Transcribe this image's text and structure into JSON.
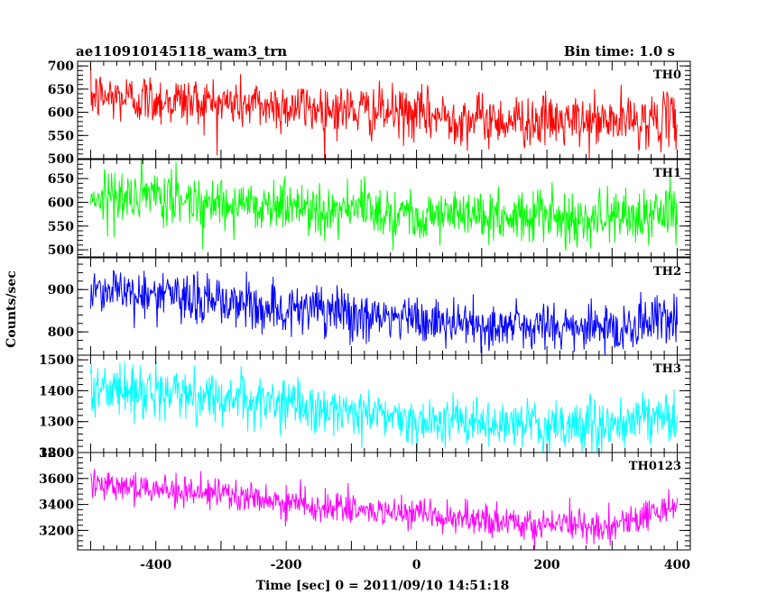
{
  "header": {
    "title": "ae110910145118_wam3_trn",
    "bin_time": "Bin time: 1.0 s"
  },
  "chart_data": {
    "type": "line",
    "title": "ae110910145118_wam3_trn",
    "subtitle": "Bin time: 1.0 s",
    "xlabel": "Time [sec] 0 = 2011/09/10 14:51:18",
    "ylabel": "Counts/sec",
    "xlim": [
      -520,
      420
    ],
    "x_range": [
      -500,
      400
    ],
    "x_step": 1,
    "x_ticks": [
      -400,
      -200,
      0,
      200,
      400
    ],
    "grid": false,
    "panels": [
      {
        "name": "TH0",
        "color": "#ff0000",
        "ylim": [
          500,
          710
        ],
        "y_ticks": [
          500,
          550,
          600,
          650,
          700
        ],
        "trend": [
          [
            -500,
            635
          ],
          [
            -300,
            620
          ],
          [
            -100,
            605
          ],
          [
            100,
            585
          ],
          [
            250,
            578
          ],
          [
            400,
            585
          ]
        ],
        "noise_std": 28
      },
      {
        "name": "TH1",
        "color": "#00ff00",
        "ylim": [
          485,
          690
        ],
        "y_ticks": [
          500,
          550,
          600,
          650
        ],
        "trend": [
          [
            -500,
            615
          ],
          [
            -300,
            600
          ],
          [
            -100,
            585
          ],
          [
            100,
            570
          ],
          [
            250,
            568
          ],
          [
            400,
            575
          ]
        ],
        "noise_std": 28
      },
      {
        "name": "TH2",
        "color": "#0000ff",
        "ylim": [
          745,
          975
        ],
        "y_ticks": [
          800,
          900
        ],
        "trend": [
          [
            -500,
            905
          ],
          [
            -300,
            870
          ],
          [
            -100,
            840
          ],
          [
            100,
            815
          ],
          [
            300,
            808
          ],
          [
            400,
            835
          ]
        ],
        "noise_std": 30
      },
      {
        "name": "TH3",
        "color": "#00ffff",
        "ylim": [
          1200,
          1515
        ],
        "y_ticks": [
          1200,
          1300,
          1400,
          1500
        ],
        "trend": [
          [
            -500,
            1410
          ],
          [
            -300,
            1380
          ],
          [
            -100,
            1330
          ],
          [
            100,
            1290
          ],
          [
            300,
            1285
          ],
          [
            400,
            1320
          ]
        ],
        "noise_std": 40
      },
      {
        "name": "TH0123",
        "color": "#ff00ff",
        "ylim": [
          3050,
          3800
        ],
        "y_ticks": [
          3200,
          3400,
          3600,
          3800
        ],
        "trend": [
          [
            -500,
            3580
          ],
          [
            -300,
            3470
          ],
          [
            -100,
            3360
          ],
          [
            100,
            3270
          ],
          [
            300,
            3230
          ],
          [
            400,
            3400
          ]
        ],
        "noise_std": 60
      }
    ]
  }
}
